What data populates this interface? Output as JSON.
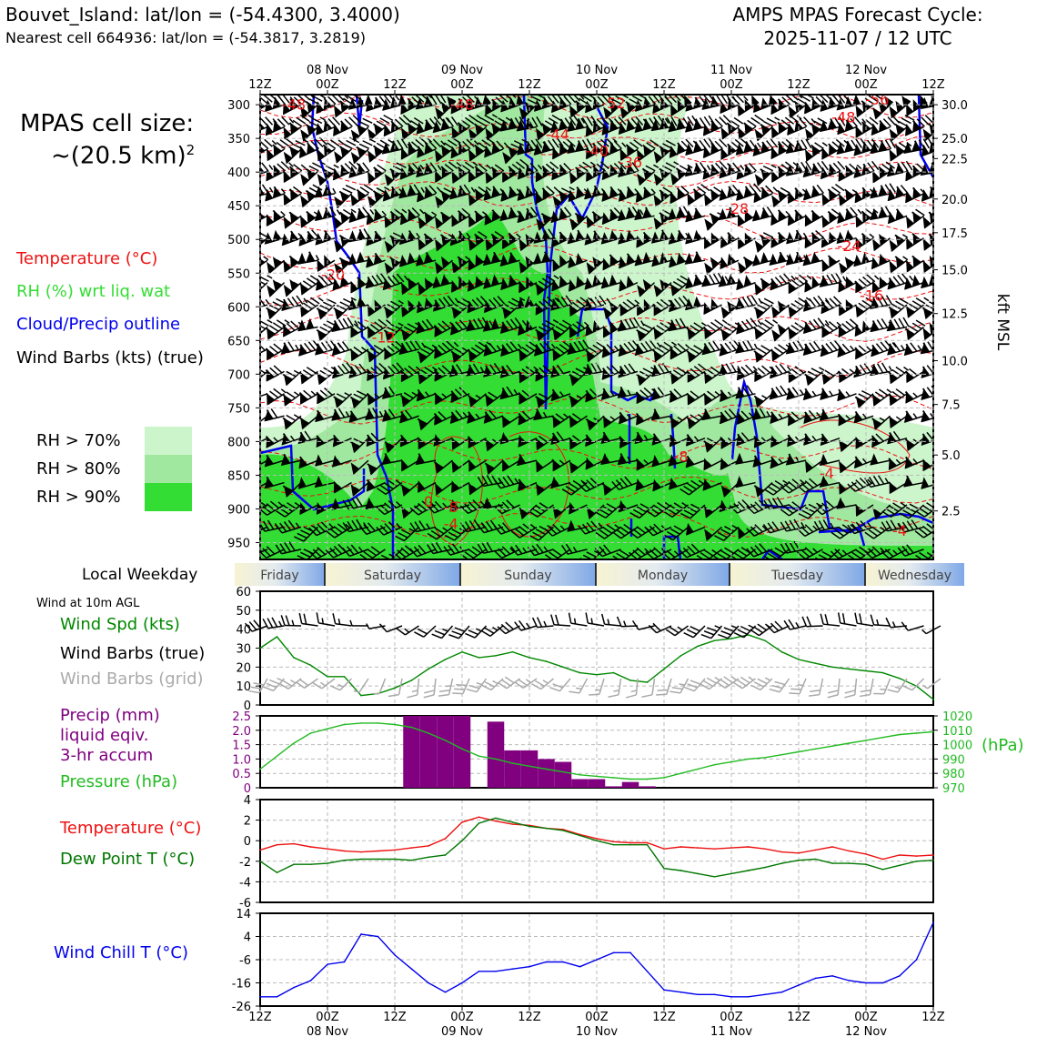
{
  "header": {
    "station": "Bouvet_Island: lat/lon = (-54.4300, 3.4000)",
    "nearest": "Nearest cell 664936: lat/lon = (-54.3817, 3.2819)",
    "cycle_line1": "AMPS MPAS Forecast Cycle:",
    "cycle_line2": "2025-11-07 / 12 UTC"
  },
  "cell_size": {
    "line1": "MPAS cell size:",
    "line2": "~(20.5 km)",
    "sup": "2"
  },
  "legend": {
    "temperature": "Temperature (°C)",
    "rh": "RH (%) wrt liq. wat",
    "cloud": "Cloud/Precip outline",
    "barbs": "Wind Barbs (kts) (true)",
    "rh70": "RH > 70%",
    "rh80": "RH > 80%",
    "rh90": "RH > 90%"
  },
  "colors": {
    "rh70": "#ccf5cc",
    "rh80": "#a0e8a0",
    "rh90": "#33dd33",
    "temp": "#ee1111",
    "cloud": "#0000ee",
    "wind_speed": "#008800",
    "pressure": "#22bb22",
    "precip": "#800080",
    "dewpoint": "#007700",
    "windchill": "#0000ee",
    "barb_grid": "#aaaaaa"
  },
  "time_axis": {
    "hour_labels": [
      "12Z",
      "00Z",
      "12Z",
      "00Z",
      "12Z",
      "00Z",
      "12Z",
      "00Z",
      "12Z",
      "00Z",
      "12Z"
    ],
    "date_labels": [
      "08 Nov",
      "09 Nov",
      "10 Nov",
      "11 Nov",
      "12 Nov"
    ],
    "range_hours": [
      0,
      120
    ]
  },
  "weekday": {
    "title": "Local Weekday",
    "days": [
      "Friday",
      "Saturday",
      "Sunday",
      "Monday",
      "Tuesday",
      "Wednesday"
    ]
  },
  "right_axis": {
    "label": "kft MSL"
  },
  "panel_titles": {
    "wind_header": "Wind at 10m AGL",
    "wind_spd": "Wind Spd (kts)",
    "wind_barbs_true": "Wind Barbs (true)",
    "wind_barbs_grid": "Wind Barbs (grid)",
    "precip1": "Precip (mm)",
    "precip2": "liquid eqiv.",
    "precip3": "3-hr accum",
    "pressure": "Pressure (hPa)",
    "pressure_unit": "(hPa)",
    "temperature": "Temperature (°C)",
    "dewpoint": "Dew Point T (°C)",
    "windchill": "Wind Chill T (°C)"
  },
  "chart_data": [
    {
      "type": "heatmap",
      "title": "",
      "yaxis_left": "Pressure (hPa)",
      "yaxis_right": "kft MSL",
      "ylim": [
        975,
        285
      ],
      "left_ticks": [
        300,
        350,
        400,
        450,
        500,
        550,
        600,
        650,
        700,
        750,
        800,
        850,
        900,
        950
      ],
      "right_ticks": [
        {
          "p": 300,
          "label": "30.0"
        },
        {
          "p": 350,
          "label": "25.0"
        },
        {
          "p": 380,
          "label": "22.5"
        },
        {
          "p": 440,
          "label": "20.0"
        },
        {
          "p": 490,
          "label": "17.5"
        },
        {
          "p": 545,
          "label": "15.0"
        },
        {
          "p": 610,
          "label": "12.5"
        },
        {
          "p": 680,
          "label": "10.0"
        },
        {
          "p": 745,
          "label": "7.5"
        },
        {
          "p": 820,
          "label": "5.0"
        },
        {
          "p": 903,
          "label": "2.5"
        }
      ],
      "temp_labels": [
        {
          "t": 6,
          "p": 307,
          "text": "-48"
        },
        {
          "t": 36,
          "p": 307,
          "text": "-48"
        },
        {
          "t": 63,
          "p": 305,
          "text": "-52"
        },
        {
          "t": 110,
          "p": 300,
          "text": "-56"
        },
        {
          "t": 104,
          "p": 326,
          "text": "-48"
        },
        {
          "t": 53,
          "p": 352,
          "text": "-44"
        },
        {
          "t": 60,
          "p": 376,
          "text": "-40"
        },
        {
          "t": 66,
          "p": 393,
          "text": "-36"
        },
        {
          "t": 85,
          "p": 462,
          "text": "-28"
        },
        {
          "t": 105,
          "p": 517,
          "text": "-24"
        },
        {
          "t": 13,
          "p": 560,
          "text": "-20"
        },
        {
          "t": 109,
          "p": 591,
          "text": "-16"
        },
        {
          "t": 22,
          "p": 653,
          "text": "-12"
        },
        {
          "t": 75,
          "p": 830,
          "text": "-8"
        },
        {
          "t": 101,
          "p": 855,
          "text": "-4"
        },
        {
          "t": 114,
          "p": 940,
          "text": "-4"
        },
        {
          "t": 34,
          "p": 905,
          "text": "-8"
        },
        {
          "t": 34,
          "p": 930,
          "text": "-4"
        },
        {
          "t": 30,
          "p": 897,
          "text": "0"
        }
      ]
    },
    {
      "type": "line",
      "title": "Wind at 10m AGL",
      "ylabel": "Wind Spd (kts)",
      "ylim": [
        0,
        60
      ],
      "yticks": [
        0,
        10,
        20,
        30,
        40,
        50,
        60
      ],
      "x": [
        0,
        3,
        6,
        9,
        12,
        15,
        18,
        21,
        24,
        27,
        30,
        33,
        36,
        39,
        42,
        45,
        48,
        51,
        54,
        57,
        60,
        63,
        66,
        69,
        72,
        75,
        78,
        81,
        84,
        87,
        90,
        93,
        96,
        99,
        102,
        105,
        108,
        111,
        114,
        117,
        120
      ],
      "series": [
        {
          "name": "Wind Spd (kts)",
          "values": [
            30,
            36,
            25,
            21,
            15,
            15,
            5,
            6,
            9,
            13,
            19,
            24,
            28,
            25,
            26,
            28,
            25,
            23,
            20,
            17,
            16,
            17,
            13,
            12,
            19,
            26,
            31,
            34,
            35,
            37,
            34,
            28,
            24,
            22,
            20,
            19,
            18,
            17,
            14,
            10,
            3
          ]
        }
      ]
    },
    {
      "type": "bar",
      "title": "",
      "ylabel": "Precip (mm) liquid eqiv. 3-hr accum",
      "ylim": [
        0,
        2.5
      ],
      "yticks": [
        0,
        0.5,
        1.0,
        1.5,
        2.0,
        2.5
      ],
      "x": [
        27,
        30,
        33,
        36,
        39,
        42,
        45,
        48,
        51,
        54,
        57,
        60,
        63,
        66,
        69,
        72,
        75
      ],
      "values": [
        2.5,
        2.5,
        2.5,
        2.5,
        0.0,
        2.3,
        1.3,
        1.3,
        1.0,
        0.9,
        0.3,
        0.3,
        0.05,
        0.2,
        0.05,
        0.0,
        0.0
      ],
      "pressure": {
        "name": "Pressure (hPa)",
        "ylim": [
          970,
          1020
        ],
        "yticks": [
          970,
          980,
          990,
          1000,
          1010,
          1020
        ],
        "x": [
          0,
          3,
          6,
          9,
          12,
          15,
          18,
          21,
          24,
          27,
          30,
          33,
          36,
          39,
          42,
          45,
          48,
          51,
          54,
          57,
          60,
          63,
          66,
          69,
          72,
          75,
          78,
          81,
          84,
          87,
          90,
          93,
          96,
          99,
          102,
          105,
          108,
          111,
          114,
          117,
          120
        ],
        "values": [
          983,
          992,
          1001,
          1008,
          1011,
          1014,
          1015,
          1015,
          1014,
          1012,
          1008,
          1003,
          997,
          992,
          990,
          987,
          985,
          983,
          981,
          979,
          978,
          977,
          976,
          976,
          977,
          980,
          983,
          986,
          988,
          990,
          991,
          993,
          995,
          997,
          999,
          1001,
          1003,
          1005,
          1007,
          1008,
          1009
        ]
      }
    },
    {
      "type": "line",
      "title": "",
      "ylabel": "Temperature (°C)",
      "ylim": [
        -6,
        4
      ],
      "yticks": [
        -6,
        -4,
        -2,
        0,
        2,
        4
      ],
      "x": [
        0,
        3,
        6,
        9,
        12,
        15,
        18,
        21,
        24,
        27,
        30,
        33,
        36,
        39,
        42,
        45,
        48,
        51,
        54,
        57,
        60,
        63,
        66,
        69,
        72,
        75,
        78,
        81,
        84,
        87,
        90,
        93,
        96,
        99,
        102,
        105,
        108,
        111,
        114,
        117,
        120
      ],
      "series": [
        {
          "name": "Temperature (°C)",
          "values": [
            -0.9,
            -0.4,
            -0.3,
            -0.6,
            -0.8,
            -1.0,
            -1.1,
            -1.0,
            -0.9,
            -0.7,
            -0.5,
            0.2,
            1.8,
            2.3,
            1.9,
            1.6,
            1.5,
            1.2,
            1.1,
            0.6,
            0.2,
            -0.1,
            -0.2,
            -0.2,
            -0.8,
            -0.6,
            -0.7,
            -0.8,
            -0.7,
            -0.6,
            -0.8,
            -1.1,
            -1.2,
            -0.9,
            -0.6,
            -1.0,
            -1.3,
            -1.8,
            -1.4,
            -1.5,
            -1.4
          ]
        },
        {
          "name": "Dew Point T (°C)",
          "values": [
            -2.0,
            -3.1,
            -2.3,
            -2.3,
            -2.2,
            -1.9,
            -1.8,
            -1.8,
            -1.8,
            -1.9,
            -1.6,
            -1.4,
            0.0,
            1.7,
            2.2,
            1.8,
            1.4,
            1.2,
            1.0,
            0.5,
            0.0,
            -0.4,
            -0.4,
            -0.4,
            -2.7,
            -2.9,
            -3.2,
            -3.5,
            -3.2,
            -2.9,
            -2.6,
            -2.2,
            -1.9,
            -1.8,
            -2.2,
            -2.2,
            -2.3,
            -2.8,
            -2.4,
            -2.0,
            -1.9
          ]
        }
      ]
    },
    {
      "type": "line",
      "title": "",
      "ylabel": "Wind Chill T (°C)",
      "ylim": [
        -26,
        14
      ],
      "yticks": [
        -26,
        -16,
        -6,
        4,
        14
      ],
      "x": [
        0,
        3,
        6,
        9,
        12,
        15,
        18,
        21,
        24,
        27,
        30,
        33,
        36,
        39,
        42,
        45,
        48,
        51,
        54,
        57,
        60,
        63,
        66,
        69,
        72,
        75,
        78,
        81,
        84,
        87,
        90,
        93,
        96,
        99,
        102,
        105,
        108,
        111,
        114,
        117,
        120
      ],
      "series": [
        {
          "name": "Wind Chill T (°C)",
          "values": [
            -22,
            -22,
            -18,
            -15,
            -8,
            -7,
            5,
            4,
            -4,
            -10,
            -16,
            -20,
            -16,
            -11,
            -11,
            -10,
            -9,
            -7,
            -7,
            -9,
            -6,
            -3,
            -3,
            -11,
            -19,
            -20,
            -21,
            -21,
            -22,
            -22,
            -21,
            -20,
            -17,
            -14,
            -13,
            -15,
            -16,
            -16,
            -13,
            -6,
            10
          ]
        }
      ]
    }
  ]
}
